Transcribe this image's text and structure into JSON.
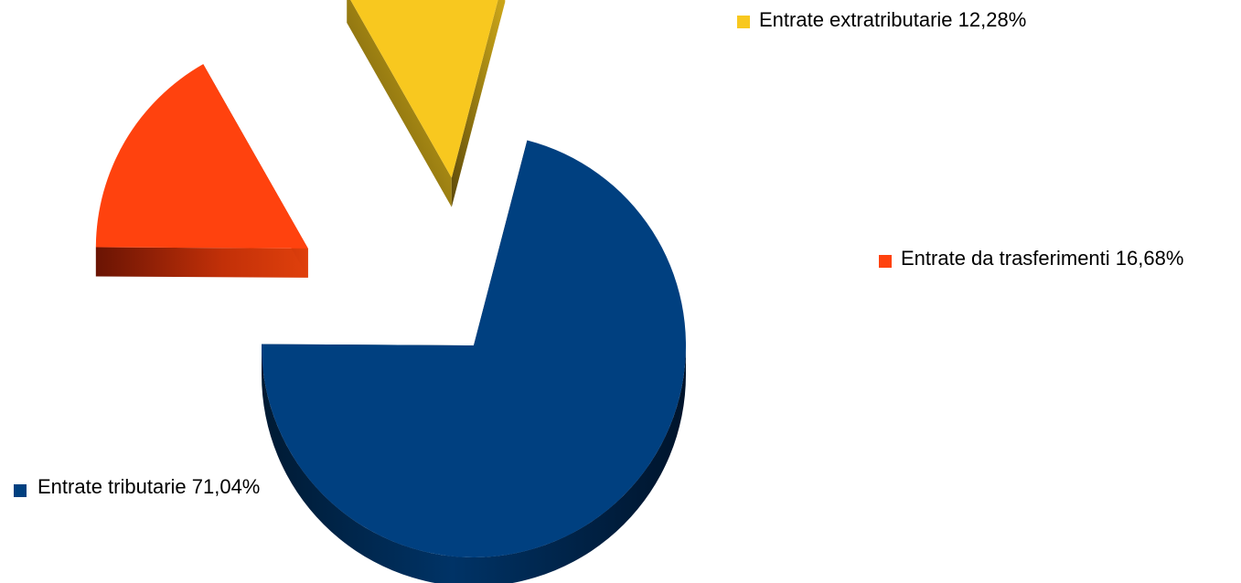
{
  "chart_data": {
    "type": "pie",
    "title": "",
    "slices": [
      {
        "label": "Entrate tributarie 71,04%",
        "value": 71.04,
        "color": "#004080"
      },
      {
        "label": "Entrate da trasferimenti 16,68%",
        "value": 16.68,
        "color": "#FF420E"
      },
      {
        "label": "Entrate extratributarie 12,28%",
        "value": 12.28,
        "color": "#F8C81F"
      }
    ],
    "exploded": [
      "Entrate da trasferimenti 16,68%",
      "Entrate extratributarie 12,28%"
    ],
    "style": "3d",
    "legend": "labels beside slices"
  }
}
